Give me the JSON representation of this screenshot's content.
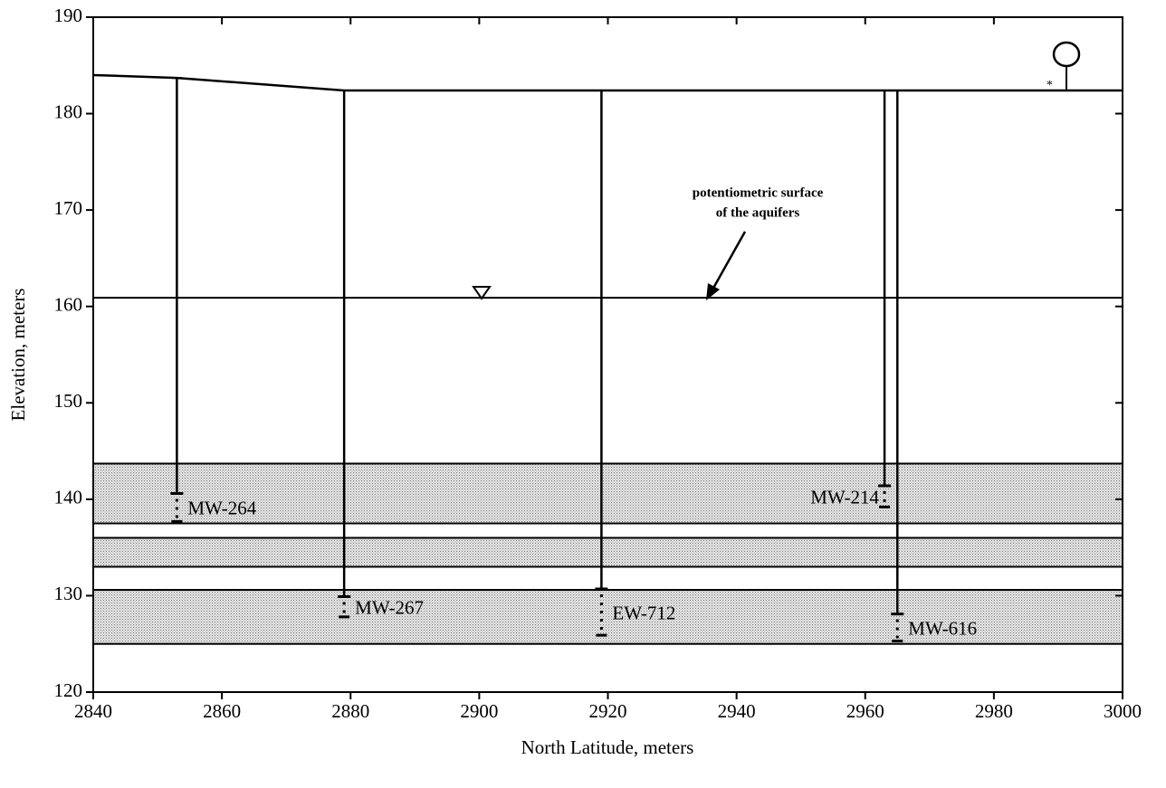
{
  "chart_data": {
    "type": "cross-section",
    "xlabel": "North Latitude, meters",
    "ylabel": "Elevation, meters",
    "xlim": [
      2840,
      3000
    ],
    "ylim": [
      120,
      190
    ],
    "xticks": [
      2840,
      2860,
      2880,
      2900,
      2920,
      2940,
      2960,
      2980,
      3000
    ],
    "yticks": [
      120,
      130,
      140,
      150,
      160,
      170,
      180,
      190
    ],
    "ground_surface": {
      "x": [
        2840,
        2853,
        2879,
        3000
      ],
      "y": [
        184,
        183.7,
        182.4,
        182.4
      ]
    },
    "potentiometric_surface": 160.9,
    "annotation": [
      "potentiometric surface",
      "of the aquifers"
    ],
    "aquifers": [
      {
        "top": 143.7,
        "bottom": 137.5
      },
      {
        "top": 136,
        "bottom": 133
      },
      {
        "top": 130.6,
        "bottom": 125
      }
    ],
    "wells": [
      {
        "name": "MW-264",
        "x": 2853,
        "top": 183.7,
        "casing_bottom": 140.6,
        "screen_bottom": 137.7
      },
      {
        "name": "MW-267",
        "x": 2879,
        "top": 182.4,
        "casing_bottom": 129.9,
        "screen_bottom": 127.8
      },
      {
        "name": "EW-712",
        "x": 2919,
        "top": 182.4,
        "casing_bottom": 130.7,
        "screen_bottom": 125.9
      },
      {
        "name": "MW-214",
        "x": 2963,
        "top": 182.4,
        "casing_bottom": 141.4,
        "screen_bottom": 139.2
      },
      {
        "name": "MW-616",
        "x": 2965,
        "top": 182.4,
        "casing_bottom": 128.1,
        "screen_bottom": 125.3
      }
    ]
  }
}
